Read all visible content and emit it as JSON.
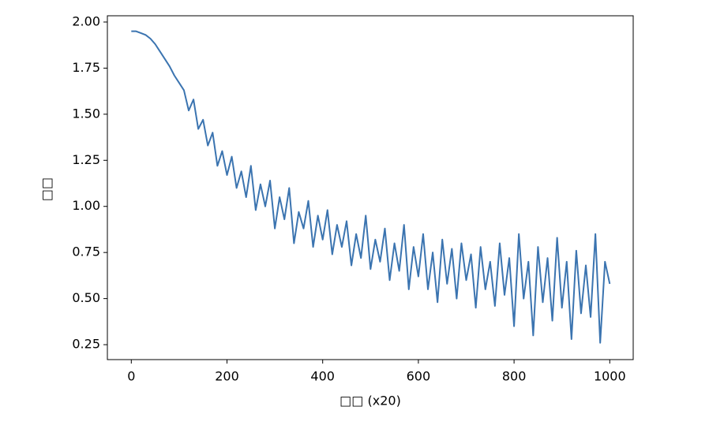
{
  "chart_data": {
    "type": "line",
    "x_label": "□□ (x20)",
    "y_label": "□□",
    "x": [
      0,
      10,
      20,
      30,
      40,
      50,
      60,
      70,
      80,
      90,
      100,
      110,
      120,
      130,
      140,
      150,
      160,
      170,
      180,
      190,
      200,
      210,
      220,
      230,
      240,
      250,
      260,
      270,
      280,
      290,
      300,
      310,
      320,
      330,
      340,
      350,
      360,
      370,
      380,
      390,
      400,
      410,
      420,
      430,
      440,
      450,
      460,
      470,
      480,
      490,
      500,
      510,
      520,
      530,
      540,
      550,
      560,
      570,
      580,
      590,
      600,
      610,
      620,
      630,
      640,
      650,
      660,
      670,
      680,
      690,
      700,
      710,
      720,
      730,
      740,
      750,
      760,
      770,
      780,
      790,
      800,
      810,
      820,
      830,
      840,
      850,
      860,
      870,
      880,
      890,
      900,
      910,
      920,
      930,
      940,
      950,
      960,
      970,
      980,
      990,
      1000
    ],
    "series": [
      {
        "color": "#3b74b0",
        "values": [
          1.95,
          1.95,
          1.94,
          1.93,
          1.91,
          1.88,
          1.84,
          1.8,
          1.76,
          1.71,
          1.67,
          1.63,
          1.52,
          1.58,
          1.42,
          1.47,
          1.33,
          1.4,
          1.22,
          1.3,
          1.17,
          1.27,
          1.1,
          1.19,
          1.05,
          1.22,
          0.98,
          1.12,
          1.0,
          1.14,
          0.88,
          1.05,
          0.93,
          1.1,
          0.8,
          0.97,
          0.88,
          1.03,
          0.78,
          0.95,
          0.82,
          0.98,
          0.74,
          0.9,
          0.78,
          0.92,
          0.68,
          0.85,
          0.72,
          0.95,
          0.66,
          0.82,
          0.7,
          0.88,
          0.6,
          0.8,
          0.65,
          0.9,
          0.55,
          0.78,
          0.62,
          0.85,
          0.55,
          0.75,
          0.48,
          0.82,
          0.58,
          0.77,
          0.5,
          0.8,
          0.6,
          0.74,
          0.45,
          0.78,
          0.55,
          0.7,
          0.46,
          0.8,
          0.52,
          0.72,
          0.35,
          0.85,
          0.5,
          0.7,
          0.3,
          0.78,
          0.48,
          0.72,
          0.38,
          0.83,
          0.45,
          0.7,
          0.28,
          0.76,
          0.42,
          0.68,
          0.4,
          0.85,
          0.26,
          0.7,
          0.58
        ]
      }
    ],
    "xlim": [
      -50,
      1049
    ],
    "ylim": [
      0.169,
      2.034
    ],
    "xticks": [
      0,
      200,
      400,
      600,
      800,
      1000
    ],
    "yticks": [
      0.25,
      {
        "value": 0.5,
        "label": "0.50"
      },
      0.75,
      {
        "value": 1,
        "label": "1.00"
      },
      1.25,
      {
        "value": 1.5,
        "label": "1.50"
      },
      1.75,
      {
        "value": 2,
        "label": "2.00"
      }
    ]
  }
}
